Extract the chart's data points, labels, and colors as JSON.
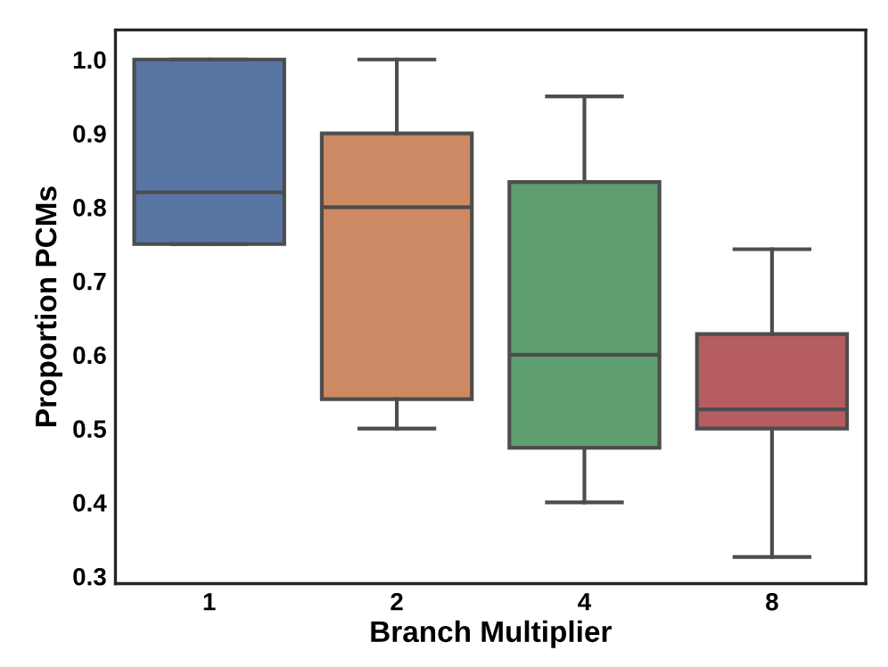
{
  "chart_data": {
    "type": "box",
    "xlabel": "Branch Multiplier",
    "ylabel": "Proportion PCMs",
    "categories": [
      "1",
      "2",
      "4",
      "8"
    ],
    "colors": [
      "#5975a4",
      "#cc8963",
      "#5f9e6e",
      "#b55d60"
    ],
    "boxes": [
      {
        "low": 0.75,
        "q1": 0.75,
        "median": 0.82,
        "q3": 1.0,
        "high": 1.0
      },
      {
        "low": 0.5,
        "q1": 0.54,
        "median": 0.8,
        "q3": 0.9,
        "high": 1.0
      },
      {
        "low": 0.4,
        "q1": 0.474,
        "median": 0.6,
        "q3": 0.834,
        "high": 0.95
      },
      {
        "low": 0.326,
        "q1": 0.5,
        "median": 0.526,
        "q3": 0.628,
        "high": 0.743
      }
    ],
    "ylim": [
      0.29,
      1.04
    ],
    "yticks": [
      0.3,
      0.4,
      0.5,
      0.6,
      0.7,
      0.8,
      0.9,
      {
        "value": 1.0,
        "label": "1.0"
      }
    ],
    "grid": false
  }
}
